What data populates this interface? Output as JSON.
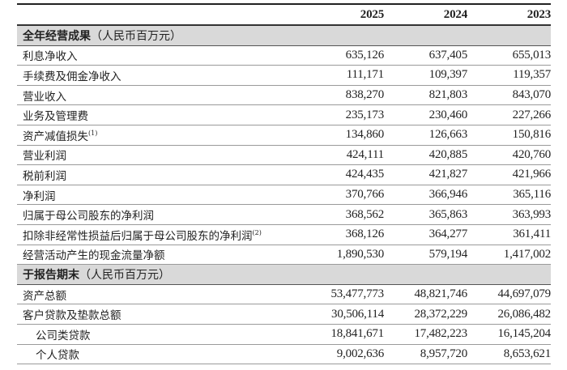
{
  "columns": [
    "2025",
    "2024",
    "2023"
  ],
  "sections": [
    {
      "title": "全年经营成果",
      "unit": "（人民币百万元）",
      "rows": [
        {
          "label": "利息净收入",
          "note": "",
          "values": [
            "635,126",
            "637,405",
            "655,013"
          ]
        },
        {
          "label": "手续费及佣金净收入",
          "note": "",
          "values": [
            "111,171",
            "109,397",
            "119,357"
          ]
        },
        {
          "label": "营业收入",
          "note": "",
          "values": [
            "838,270",
            "821,803",
            "843,070"
          ]
        },
        {
          "label": "业务及管理费",
          "note": "",
          "values": [
            "235,173",
            "230,460",
            "227,266"
          ]
        },
        {
          "label": "资产减值损失",
          "note": "(1)",
          "values": [
            "134,860",
            "126,663",
            "150,816"
          ]
        },
        {
          "label": "营业利润",
          "note": "",
          "values": [
            "424,111",
            "420,885",
            "420,760"
          ]
        },
        {
          "label": "税前利润",
          "note": "",
          "values": [
            "424,435",
            "421,827",
            "421,966"
          ]
        },
        {
          "label": "净利润",
          "note": "",
          "values": [
            "370,766",
            "366,946",
            "365,116"
          ]
        },
        {
          "label": "归属于母公司股东的净利润",
          "note": "",
          "values": [
            "368,562",
            "365,863",
            "363,993"
          ]
        },
        {
          "label": "扣除非经常性损益后归属于母公司股东的净利润",
          "note": "(2)",
          "values": [
            "368,126",
            "364,277",
            "361,411"
          ]
        },
        {
          "label": "经营活动产生的现金流量净额",
          "note": "",
          "values": [
            "1,890,530",
            "579,194",
            "1,417,002"
          ]
        }
      ]
    },
    {
      "title": "于报告期末",
      "unit": "（人民币百万元）",
      "rows": [
        {
          "label": "资产总额",
          "note": "",
          "indent": false,
          "values": [
            "53,477,773",
            "48,821,746",
            "44,697,079"
          ]
        },
        {
          "label": "客户贷款及垫款总额",
          "note": "",
          "indent": false,
          "values": [
            "30,506,114",
            "28,372,229",
            "26,086,482"
          ]
        },
        {
          "label": "公司类贷款",
          "note": "",
          "indent": true,
          "values": [
            "18,841,671",
            "17,482,223",
            "16,145,204"
          ]
        },
        {
          "label": "个人贷款",
          "note": "",
          "indent": true,
          "values": [
            "9,002,636",
            "8,957,720",
            "8,653,621"
          ]
        }
      ]
    }
  ]
}
